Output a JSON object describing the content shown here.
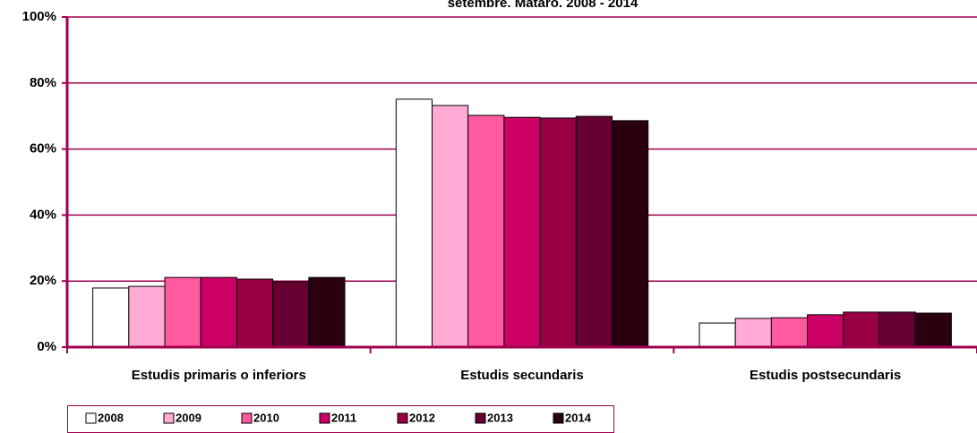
{
  "chart_data": {
    "type": "bar",
    "title": "setembre. Mataró. 2008 - 2014",
    "categories": [
      "Estudis primaris o inferiors",
      "Estudis secundaris",
      "Estudis postsecundaris"
    ],
    "series": [
      {
        "name": "2008",
        "color": "#ffffff",
        "values": [
          17.9,
          75.1,
          7.3
        ]
      },
      {
        "name": "2009",
        "color": "#ffaad4",
        "values": [
          18.4,
          73.2,
          8.7
        ]
      },
      {
        "name": "2010",
        "color": "#ff5aa0",
        "values": [
          21.1,
          70.2,
          8.9
        ]
      },
      {
        "name": "2011",
        "color": "#cc0066",
        "values": [
          21.1,
          69.6,
          9.8
        ]
      },
      {
        "name": "2012",
        "color": "#990044",
        "values": [
          20.6,
          69.4,
          10.6
        ]
      },
      {
        "name": "2013",
        "color": "#660033",
        "values": [
          19.8,
          69.9,
          10.6
        ]
      },
      {
        "name": "2014",
        "color": "#2a0010",
        "values": [
          21.1,
          68.6,
          10.3
        ]
      }
    ],
    "ylim": [
      0,
      100
    ],
    "yticks": [
      {
        "value": 0,
        "label": "0%"
      },
      {
        "value": 20,
        "label": "20%"
      },
      {
        "value": 40,
        "label": "40%"
      },
      {
        "value": 60,
        "label": "60%"
      },
      {
        "value": 80,
        "label": "80%"
      },
      {
        "value": 100,
        "label": "100%"
      }
    ],
    "grid": true,
    "legend": "bottom-left"
  }
}
